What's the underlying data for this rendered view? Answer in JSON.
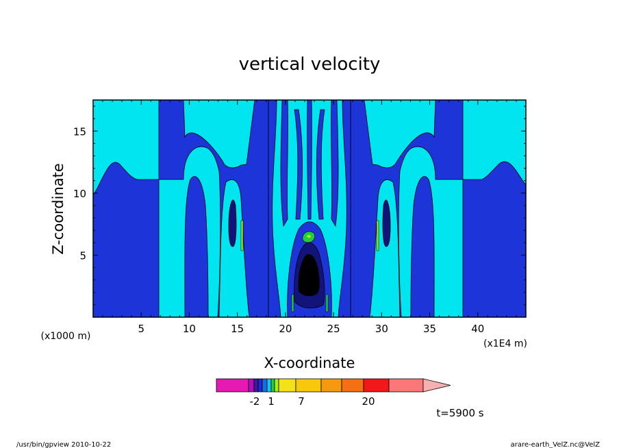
{
  "chart_data": {
    "type": "heatmap",
    "title": "vertical velocity",
    "xlabel": "X-coordinate",
    "ylabel": "Z-coordinate",
    "x_unit": "(x1E4 m)",
    "y_unit": "(x1000 m)",
    "xlim": [
      0,
      45
    ],
    "ylim": [
      0,
      17.5
    ],
    "x_ticks": [
      5,
      10,
      15,
      20,
      25,
      30,
      35,
      40
    ],
    "y_ticks": [
      5,
      10,
      15
    ],
    "colorbar": {
      "tick_labels": [
        "-2",
        "1",
        "7",
        "20"
      ],
      "colors": [
        "#e619b3",
        "#b30dc0",
        "#3b1b9a",
        "#1f2bd1",
        "#1a6be6",
        "#13c6f0",
        "#22cc44",
        "#a6ee1a",
        "#f2e21a",
        "#f7c80c",
        "#f59a10",
        "#f47015",
        "#f01818",
        "#fa7878",
        "#f5b0b0"
      ],
      "extend": "max"
    },
    "time_label": "t=5900 s"
  },
  "footer": {
    "left": "/usr/bin/gpview  2010-10-22",
    "right": "arare-earth_VelZ.nc@VelZ"
  }
}
